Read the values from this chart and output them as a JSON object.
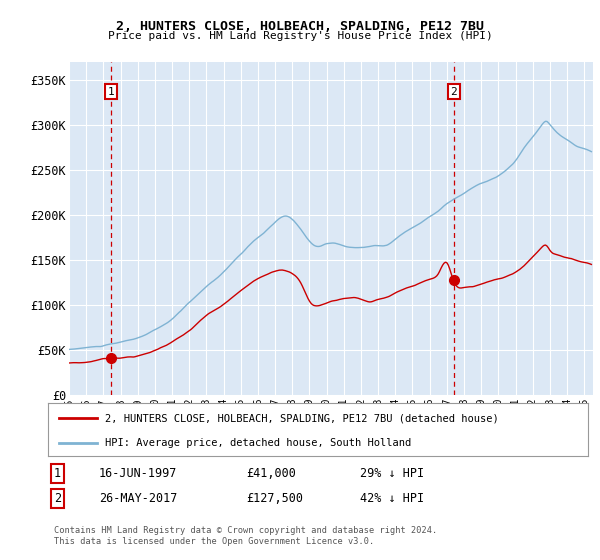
{
  "title": "2, HUNTERS CLOSE, HOLBEACH, SPALDING, PE12 7BU",
  "subtitle": "Price paid vs. HM Land Registry's House Price Index (HPI)",
  "ylabel_ticks": [
    "£0",
    "£50K",
    "£100K",
    "£150K",
    "£200K",
    "£250K",
    "£300K",
    "£350K"
  ],
  "ytick_values": [
    0,
    50000,
    100000,
    150000,
    200000,
    250000,
    300000,
    350000
  ],
  "ylim": [
    0,
    370000
  ],
  "xlim_start": 1995.0,
  "xlim_end": 2025.5,
  "sale1_year": 1997.46,
  "sale1_price": 41000,
  "sale1_label": "1",
  "sale1_date": "16-JUN-1997",
  "sale1_pct": "29% ↓ HPI",
  "sale2_year": 2017.4,
  "sale2_price": 127500,
  "sale2_label": "2",
  "sale2_date": "26-MAY-2017",
  "sale2_pct": "42% ↓ HPI",
  "legend_label1": "2, HUNTERS CLOSE, HOLBEACH, SPALDING, PE12 7BU (detached house)",
  "legend_label2": "HPI: Average price, detached house, South Holland",
  "footer": "Contains HM Land Registry data © Crown copyright and database right 2024.\nThis data is licensed under the Open Government Licence v3.0.",
  "line_color_sale": "#cc0000",
  "line_color_hpi": "#7fb3d3",
  "bg_color": "#dce8f5",
  "grid_color": "#ffffff"
}
